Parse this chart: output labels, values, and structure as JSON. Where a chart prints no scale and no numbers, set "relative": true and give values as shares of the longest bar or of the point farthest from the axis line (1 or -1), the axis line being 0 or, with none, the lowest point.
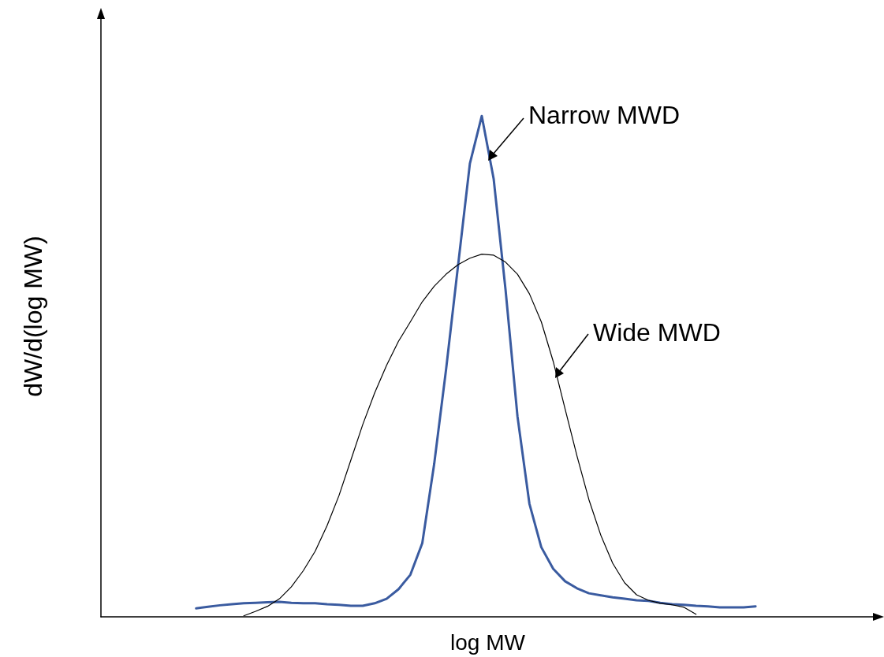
{
  "chart_data": {
    "type": "line",
    "relative": true,
    "xlabel": "log MW",
    "ylabel": "dW/d(log MW)",
    "marker": "none",
    "line_style": "solid",
    "grid": false,
    "categories": [
      null,
      null,
      null,
      null,
      null,
      null,
      null,
      null,
      null,
      null,
      null,
      null,
      null,
      null,
      null,
      null,
      null,
      null,
      null,
      null,
      null,
      null,
      null,
      null,
      null,
      null,
      null,
      null,
      null,
      null,
      null,
      null,
      null,
      null,
      null,
      null,
      null,
      null,
      null,
      null,
      null,
      null,
      null,
      null,
      null,
      null,
      null,
      null,
      null,
      null,
      null,
      null,
      null,
      null,
      null,
      null,
      null,
      null,
      null,
      null,
      null,
      null,
      null,
      null,
      null,
      null
    ],
    "series": [
      {
        "name": "Narrow MWD",
        "color": "#3a5ba0",
        "values": [
          null,
          null,
          null,
          null,
          null,
          null,
          null,
          null,
          0.017,
          0.02,
          0.023,
          0.025,
          0.027,
          0.028,
          0.029,
          0.03,
          0.028,
          0.027,
          0.027,
          0.025,
          0.024,
          0.022,
          0.022,
          0.027,
          0.036,
          0.055,
          0.084,
          0.147,
          0.305,
          0.494,
          0.7,
          0.905,
          1,
          0.874,
          0.652,
          0.4,
          0.226,
          0.139,
          0.096,
          0.071,
          0.057,
          0.047,
          0.043,
          0.039,
          0.036,
          0.033,
          0.032,
          0.028,
          0.025,
          0.024,
          0.022,
          0.021,
          0.019,
          0.019,
          0.019,
          0.021,
          null,
          null,
          null,
          null,
          null,
          null,
          null,
          null,
          null,
          null
        ]
      },
      {
        "name": "Wide MWD",
        "color": "#000000",
        "values": [
          null,
          null,
          null,
          null,
          null,
          null,
          null,
          null,
          null,
          null,
          null,
          null,
          0.002,
          0.011,
          0.021,
          0.036,
          0.06,
          0.092,
          0.131,
          0.182,
          0.242,
          0.313,
          0.384,
          0.447,
          0.502,
          0.55,
          0.589,
          0.629,
          0.66,
          0.684,
          0.703,
          0.716,
          0.724,
          0.722,
          0.708,
          0.684,
          0.645,
          0.589,
          0.51,
          0.415,
          0.321,
          0.234,
          0.163,
          0.107,
          0.068,
          0.044,
          0.033,
          0.027,
          0.024,
          0.019,
          0.005,
          null,
          null,
          null,
          null,
          null,
          null,
          null,
          null,
          null,
          null,
          null,
          null,
          null,
          null,
          null
        ]
      }
    ]
  }
}
